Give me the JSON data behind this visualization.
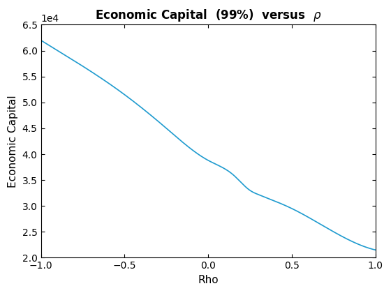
{
  "title": "Economic Capital  (99%)  versus  $\\rho$",
  "xlabel": "Rho",
  "ylabel": "Economic Capital",
  "line_color": "#1f9bcf",
  "xlim": [
    -1,
    1
  ],
  "ylim": [
    20000,
    65000
  ],
  "ytick_values": [
    20000,
    25000,
    30000,
    35000,
    40000,
    45000,
    50000,
    55000,
    60000,
    65000
  ],
  "xtick_values": [
    -1,
    -0.5,
    0,
    0.5,
    1
  ],
  "key_rho": [
    -1.0,
    -0.75,
    -0.5,
    -0.25,
    0.0,
    0.15,
    0.25,
    0.3,
    0.5,
    0.75,
    1.0
  ],
  "key_ec": [
    62000,
    57000,
    51500,
    45000,
    38800,
    36000,
    33000,
    32200,
    29500,
    25000,
    21500
  ]
}
